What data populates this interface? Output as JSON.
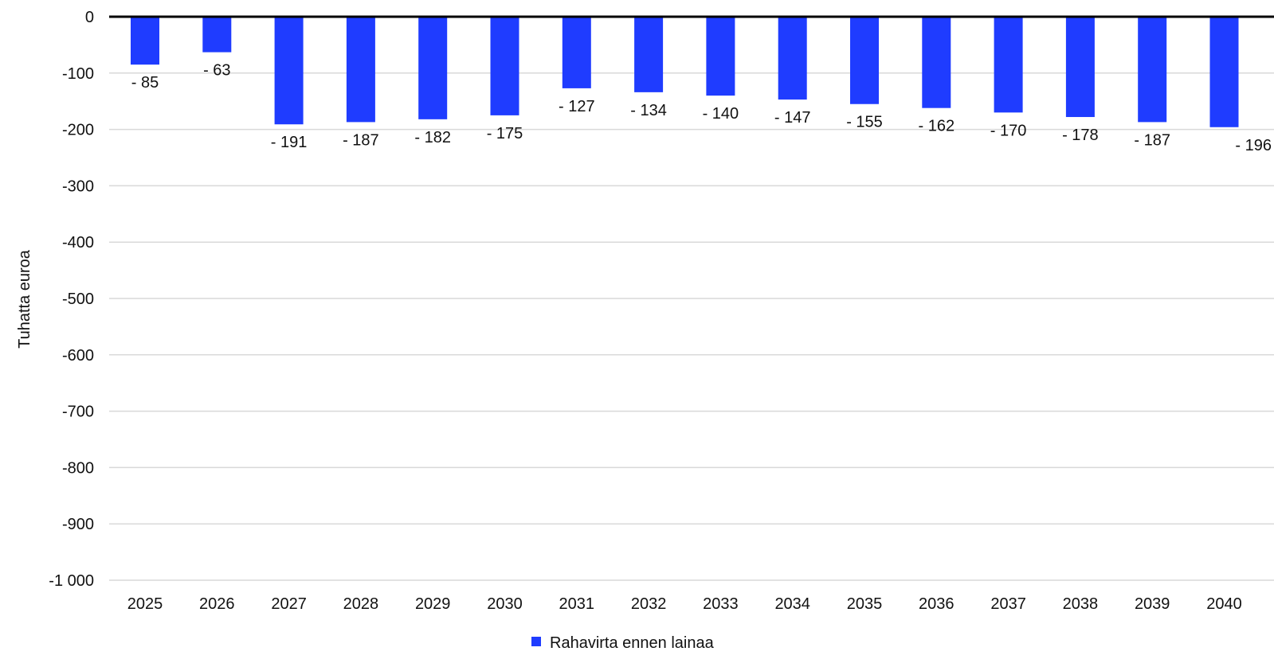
{
  "chart_data": {
    "type": "bar",
    "title": "",
    "xlabel": "",
    "ylabel": "Tuhatta euroa",
    "ylim": [
      -1000,
      0
    ],
    "yticks": [
      0,
      -100,
      -200,
      -300,
      -400,
      -500,
      -600,
      -700,
      -800,
      -900,
      -1000
    ],
    "ytick_labels": [
      "0",
      "-100",
      "-200",
      "-300",
      "-400",
      "-500",
      "-600",
      "-700",
      "-800",
      "-900",
      "-1 000"
    ],
    "categories": [
      "2025",
      "2026",
      "2027",
      "2028",
      "2029",
      "2030",
      "2031",
      "2032",
      "2033",
      "2034",
      "2035",
      "2036",
      "2037",
      "2038",
      "2039",
      "2040"
    ],
    "series": [
      {
        "name": "Rahavirta ennen lainaa",
        "color": "#1f3cff",
        "values": [
          -85,
          -63,
          -191,
          -187,
          -182,
          -175,
          -127,
          -134,
          -140,
          -147,
          -155,
          -162,
          -170,
          -178,
          -187,
          -196
        ],
        "data_labels": [
          "- 85",
          "- 63",
          "- 191",
          "- 187",
          "- 182",
          "- 175",
          "- 127",
          "- 134",
          "- 140",
          "- 147",
          "- 155",
          "- 162",
          "- 170",
          "- 178",
          "- 187",
          "- 196"
        ]
      }
    ],
    "grid": true,
    "legend_position": "bottom"
  }
}
